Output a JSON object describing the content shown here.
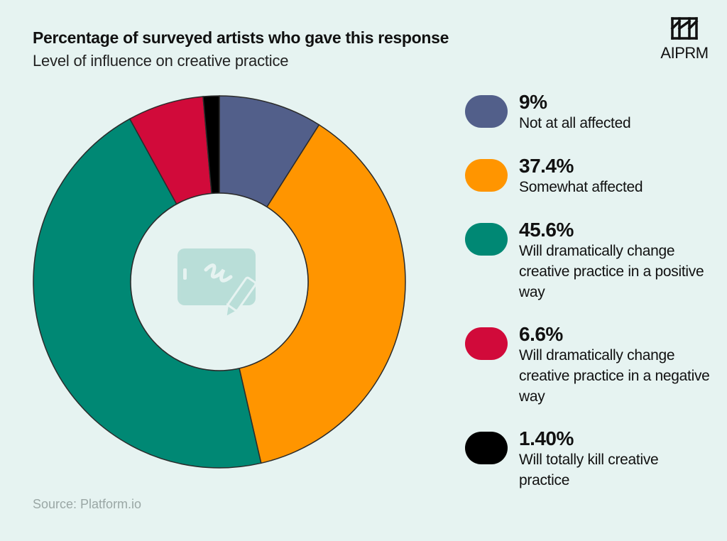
{
  "header": {
    "title": "Percentage of surveyed artists who gave this response",
    "subtitle": "Level of influence on creative practice"
  },
  "logo": {
    "text": "AIPRM",
    "icon": "aiprm-logo-icon"
  },
  "center_icon": "drawing-tablet-pen-icon",
  "source": "Source: Platform.io",
  "colors": {
    "background": "#e6f3f1",
    "center": "#e6f3f1",
    "stroke": "#2b2b2b"
  },
  "chart_data": {
    "type": "pie",
    "donut": true,
    "title": "Percentage of surveyed artists who gave this response",
    "subtitle": "Level of influence on creative practice",
    "legend_position": "right",
    "slices": [
      {
        "value": 9,
        "value_label": "9%",
        "label": "Not at all affected",
        "color": "#525f8a"
      },
      {
        "value": 37.4,
        "value_label": "37.4%",
        "label": "Somewhat affected",
        "color": "#ff9500"
      },
      {
        "value": 45.6,
        "value_label": "45.6%",
        "label": "Will dramatically change creative practice in a positive way",
        "color": "#008874"
      },
      {
        "value": 6.6,
        "value_label": "6.6%",
        "label": "Will dramatically change creative practice in a negative way",
        "color": "#d10a3a"
      },
      {
        "value": 1.4,
        "value_label": "1.40%",
        "label": "Will totally kill creative practice",
        "color": "#000000"
      }
    ]
  }
}
